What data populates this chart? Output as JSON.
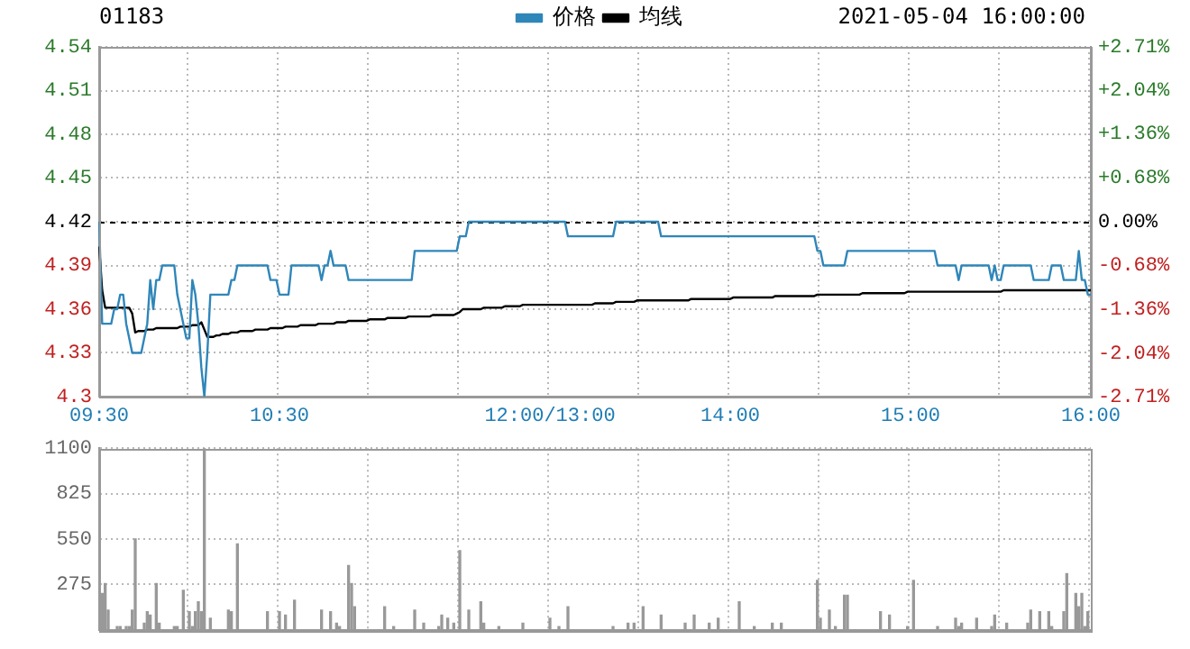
{
  "chart_data": [
    {
      "type": "line",
      "title": "01183",
      "annotations": [
        "2021-05-04 16:00:00"
      ],
      "legend": "top",
      "grid": true,
      "categories": [
        "09:30",
        null,
        null,
        null,
        null,
        null,
        null,
        null,
        null,
        null,
        null,
        null,
        null,
        null,
        null,
        null,
        null,
        null,
        null,
        null,
        null,
        null,
        null,
        null,
        null,
        null,
        null,
        null,
        null,
        null,
        null,
        null,
        null,
        null,
        null,
        null,
        null,
        null,
        null,
        null,
        null,
        null,
        null,
        null,
        null,
        null,
        null,
        null,
        null,
        null,
        null,
        null,
        null,
        null,
        null,
        null,
        null,
        null,
        null,
        null,
        "10:30",
        null,
        null,
        null,
        null,
        null,
        null,
        null,
        null,
        null,
        null,
        null,
        null,
        null,
        null,
        null,
        null,
        null,
        null,
        null,
        null,
        null,
        null,
        null,
        null,
        null,
        null,
        null,
        null,
        null,
        null,
        null,
        null,
        null,
        null,
        null,
        null,
        null,
        null,
        null,
        null,
        null,
        null,
        null,
        null,
        null,
        null,
        null,
        null,
        null,
        null,
        null,
        null,
        null,
        null,
        null,
        null,
        null,
        null,
        null,
        null,
        null,
        null,
        null,
        null,
        null,
        null,
        null,
        null,
        null,
        null,
        null,
        null,
        null,
        null,
        null,
        null,
        null,
        null,
        null,
        null,
        null,
        null,
        null,
        null,
        null,
        null,
        null,
        null,
        null,
        "12:00/13:00",
        null,
        null,
        null,
        null,
        null,
        null,
        null,
        null,
        null,
        null,
        null,
        null,
        null,
        null,
        null,
        null,
        null,
        null,
        null,
        null,
        null,
        null,
        null,
        null,
        null,
        null,
        null,
        null,
        null,
        null,
        null,
        null,
        null,
        null,
        null,
        null,
        null,
        null,
        null,
        null,
        null,
        null,
        null,
        null,
        null,
        null,
        null,
        null,
        null,
        null,
        null,
        null,
        null,
        null,
        null,
        null,
        null,
        null,
        null,
        "14:00",
        null,
        null,
        null,
        null,
        null,
        null,
        null,
        null,
        null,
        null,
        null,
        null,
        null,
        null,
        null,
        null,
        null,
        null,
        null,
        null,
        null,
        null,
        null,
        null,
        null,
        null,
        null,
        null,
        null,
        null,
        null,
        null,
        null,
        null,
        null,
        null,
        null,
        null,
        null,
        null,
        null,
        null,
        null,
        null,
        null,
        null,
        null,
        null,
        null,
        null,
        null,
        null,
        null,
        null,
        null,
        null,
        null,
        null,
        null,
        "15:00",
        null,
        null,
        null,
        null,
        null,
        null,
        null,
        null,
        null,
        null,
        null,
        null,
        null,
        null,
        null,
        null,
        null,
        null,
        null,
        null,
        null,
        null,
        null,
        null,
        null,
        null,
        null,
        null,
        null,
        null,
        null,
        null,
        null,
        null,
        null,
        null,
        null,
        null,
        null,
        null,
        null,
        null,
        null,
        null,
        null,
        null,
        null,
        null,
        null,
        null,
        null,
        null,
        null,
        null,
        null,
        null,
        null,
        null,
        null,
        "16:00"
      ],
      "ylim": [
        4.3,
        4.54
      ],
      "yticks": [
        4.3,
        4.33,
        4.36,
        4.39,
        4.42,
        4.45,
        4.48,
        4.51,
        4.54
      ],
      "y2lim": [
        -2.71,
        2.71
      ],
      "y2ticks": [
        {
          "value": -2.71,
          "label": "-2.71%"
        },
        {
          "value": -2.04,
          "label": "-2.04%"
        },
        {
          "value": -1.36,
          "label": "-1.36%"
        },
        {
          "value": -0.68,
          "label": "-0.68%"
        },
        {
          "value": 0,
          "label": "0.00%"
        },
        {
          "value": 0.68,
          "label": "+0.68%"
        },
        {
          "value": 1.36,
          "label": "+1.36%"
        },
        {
          "value": 2.04,
          "label": "+2.04%"
        },
        {
          "value": 2.71,
          "label": "+2.71%"
        }
      ],
      "ref_lines": [
        {
          "axis": "y",
          "value": 4.42,
          "color": "#000000",
          "line_style": "dashed"
        }
      ],
      "series": [
        {
          "name": "价格",
          "color": "#2f86b9",
          "values": [
            4.42,
            4.35,
            4.35,
            4.35,
            4.35,
            4.36,
            4.36,
            4.37,
            4.37,
            4.35,
            4.34,
            4.33,
            4.33,
            4.33,
            4.33,
            4.34,
            4.35,
            4.38,
            4.36,
            4.38,
            4.38,
            4.39,
            4.39,
            4.39,
            4.39,
            4.39,
            4.37,
            4.36,
            4.35,
            4.34,
            4.34,
            4.38,
            4.37,
            4.35,
            4.32,
            4.3,
            4.33,
            4.37,
            4.37,
            4.37,
            4.37,
            4.37,
            4.37,
            4.37,
            4.38,
            4.38,
            4.39,
            4.39,
            4.39,
            4.39,
            4.39,
            4.39,
            4.39,
            4.39,
            4.39,
            4.39,
            4.39,
            4.38,
            4.38,
            4.38,
            4.37,
            4.37,
            4.37,
            4.37,
            4.39,
            4.39,
            4.39,
            4.39,
            4.39,
            4.39,
            4.39,
            4.39,
            4.39,
            4.39,
            4.38,
            4.39,
            4.39,
            4.4,
            4.39,
            4.39,
            4.39,
            4.39,
            4.39,
            4.38,
            4.38,
            4.38,
            4.38,
            4.38,
            4.38,
            4.38,
            4.38,
            4.38,
            4.38,
            4.38,
            4.38,
            4.38,
            4.38,
            4.38,
            4.38,
            4.38,
            4.38,
            4.38,
            4.38,
            4.38,
            4.38,
            4.4,
            4.4,
            4.4,
            4.4,
            4.4,
            4.4,
            4.4,
            4.4,
            4.4,
            4.4,
            4.4,
            4.4,
            4.4,
            4.4,
            4.4,
            4.41,
            4.41,
            4.41,
            4.42,
            4.42,
            4.42,
            4.42,
            4.42,
            4.42,
            4.42,
            4.42,
            4.42,
            4.42,
            4.42,
            4.42,
            4.42,
            4.42,
            4.42,
            4.42,
            4.42,
            4.42,
            4.42,
            4.42,
            4.42,
            4.42,
            4.42,
            4.42,
            4.42,
            4.42,
            4.42,
            4.42,
            4.42,
            4.42,
            4.42,
            4.42,
            4.42,
            4.41,
            4.41,
            4.41,
            4.41,
            4.41,
            4.41,
            4.41,
            4.41,
            4.41,
            4.41,
            4.41,
            4.41,
            4.41,
            4.41,
            4.41,
            4.41,
            4.42,
            4.42,
            4.42,
            4.42,
            4.42,
            4.42,
            4.42,
            4.42,
            4.42,
            4.42,
            4.42,
            4.42,
            4.42,
            4.42,
            4.42,
            4.41,
            4.41,
            4.41,
            4.41,
            4.41,
            4.41,
            4.41,
            4.41,
            4.41,
            4.41,
            4.41,
            4.41,
            4.41,
            4.41,
            4.41,
            4.41,
            4.41,
            4.41,
            4.41,
            4.41,
            4.41,
            4.41,
            4.41,
            4.41,
            4.41,
            4.41,
            4.41,
            4.41,
            4.41,
            4.41,
            4.41,
            4.41,
            4.41,
            4.41,
            4.41,
            4.41,
            4.41,
            4.41,
            4.41,
            4.41,
            4.41,
            4.41,
            4.41,
            4.41,
            4.41,
            4.41,
            4.41,
            4.41,
            4.41,
            4.41,
            4.41,
            4.41,
            4.4,
            4.4,
            4.39,
            4.39,
            4.39,
            4.39,
            4.39,
            4.39,
            4.39,
            4.39,
            4.4,
            4.4,
            4.4,
            4.4,
            4.4,
            4.4,
            4.4,
            4.4,
            4.4,
            4.4,
            4.4,
            4.4,
            4.4,
            4.4,
            4.4,
            4.4,
            4.4,
            4.4,
            4.4,
            4.4,
            4.4,
            4.4,
            4.4,
            4.4,
            4.4,
            4.4,
            4.4,
            4.4,
            4.4,
            4.4,
            4.39,
            4.39,
            4.39,
            4.39,
            4.39,
            4.39,
            4.39,
            4.38,
            4.39,
            4.39,
            4.39,
            4.39,
            4.39,
            4.39,
            4.39,
            4.39,
            4.39,
            4.39,
            4.38,
            4.39,
            4.38,
            4.38,
            4.39,
            4.39,
            4.39,
            4.39,
            4.39,
            4.39,
            4.39,
            4.39,
            4.39,
            4.39,
            4.38,
            4.38,
            4.38,
            4.38,
            4.38,
            4.38,
            4.39,
            4.39,
            4.39,
            4.39,
            4.38,
            4.38,
            4.38,
            4.38,
            4.38,
            4.4,
            4.38,
            4.38,
            4.37,
            4.37
          ]
        },
        {
          "name": "均线",
          "color": "#000000",
          "values": [
            4.403,
            4.373,
            4.361,
            4.361,
            4.361,
            4.361,
            4.361,
            4.361,
            4.361,
            4.361,
            4.361,
            4.357,
            4.344,
            4.345,
            4.345,
            4.345,
            4.346,
            4.346,
            4.346,
            4.347,
            4.347,
            4.347,
            4.347,
            4.347,
            4.347,
            4.347,
            4.347,
            4.348,
            4.348,
            4.348,
            4.348,
            4.349,
            4.349,
            4.349,
            4.351,
            4.346,
            4.341,
            4.341,
            4.341,
            4.342,
            4.342,
            4.343,
            4.343,
            4.343,
            4.344,
            4.344,
            4.344,
            4.345,
            4.345,
            4.345,
            4.345,
            4.345,
            4.346,
            4.346,
            4.346,
            4.346,
            4.346,
            4.347,
            4.347,
            4.347,
            4.347,
            4.347,
            4.348,
            4.348,
            4.348,
            4.348,
            4.348,
            4.349,
            4.349,
            4.349,
            4.349,
            4.349,
            4.349,
            4.35,
            4.35,
            4.35,
            4.35,
            4.35,
            4.35,
            4.351,
            4.351,
            4.351,
            4.351,
            4.352,
            4.352,
            4.352,
            4.352,
            4.352,
            4.352,
            4.352,
            4.353,
            4.353,
            4.353,
            4.353,
            4.353,
            4.353,
            4.354,
            4.354,
            4.354,
            4.354,
            4.354,
            4.354,
            4.354,
            4.355,
            4.355,
            4.355,
            4.355,
            4.355,
            4.355,
            4.355,
            4.355,
            4.356,
            4.356,
            4.356,
            4.356,
            4.356,
            4.356,
            4.356,
            4.356,
            4.357,
            4.358,
            4.36,
            4.36,
            4.36,
            4.36,
            4.36,
            4.36,
            4.36,
            4.361,
            4.361,
            4.361,
            4.361,
            4.361,
            4.361,
            4.361,
            4.362,
            4.362,
            4.362,
            4.362,
            4.362,
            4.362,
            4.363,
            4.363,
            4.363,
            4.363,
            4.363,
            4.363,
            4.363,
            4.363,
            4.363,
            4.363,
            4.363,
            4.363,
            4.363,
            4.363,
            4.363,
            4.363,
            4.363,
            4.363,
            4.363,
            4.363,
            4.363,
            4.363,
            4.363,
            4.363,
            4.364,
            4.364,
            4.364,
            4.364,
            4.364,
            4.364,
            4.364,
            4.365,
            4.365,
            4.365,
            4.365,
            4.365,
            4.365,
            4.365,
            4.366,
            4.366,
            4.366,
            4.366,
            4.366,
            4.366,
            4.366,
            4.366,
            4.366,
            4.366,
            4.366,
            4.366,
            4.366,
            4.366,
            4.366,
            4.366,
            4.366,
            4.366,
            4.367,
            4.367,
            4.367,
            4.367,
            4.367,
            4.367,
            4.367,
            4.367,
            4.367,
            4.367,
            4.367,
            4.367,
            4.367,
            4.367,
            4.368,
            4.368,
            4.368,
            4.368,
            4.368,
            4.368,
            4.368,
            4.368,
            4.368,
            4.368,
            4.368,
            4.368,
            4.368,
            4.368,
            4.369,
            4.369,
            4.369,
            4.369,
            4.369,
            4.369,
            4.369,
            4.369,
            4.369,
            4.369,
            4.369,
            4.369,
            4.369,
            4.369,
            4.37,
            4.37,
            4.37,
            4.37,
            4.37,
            4.37,
            4.37,
            4.37,
            4.37,
            4.37,
            4.37,
            4.37,
            4.37,
            4.37,
            4.37,
            4.371,
            4.371,
            4.371,
            4.371,
            4.371,
            4.371,
            4.371,
            4.371,
            4.371,
            4.371,
            4.371,
            4.371,
            4.371,
            4.371,
            4.371,
            4.372,
            4.372,
            4.372,
            4.372,
            4.372,
            4.372,
            4.372,
            4.372,
            4.372,
            4.372,
            4.372,
            4.372,
            4.372,
            4.372,
            4.372,
            4.372,
            4.372,
            4.372,
            4.372,
            4.372,
            4.372,
            4.372,
            4.372,
            4.372,
            4.372,
            4.372,
            4.372,
            4.372,
            4.372,
            4.372,
            4.372,
            4.372,
            4.373,
            4.373,
            4.373,
            4.373,
            4.373,
            4.373,
            4.373,
            4.373,
            4.373,
            4.373,
            4.373,
            4.373,
            4.373,
            4.373,
            4.373,
            4.373,
            4.373,
            4.373,
            4.373,
            4.373,
            4.373,
            4.373,
            4.373,
            4.373,
            4.373,
            4.373,
            4.373,
            4.373,
            4.373,
            4.373
          ]
        }
      ]
    },
    {
      "type": "bar",
      "grid": true,
      "tick_labels": "y",
      "color": "#999999",
      "categories": [
        null,
        null,
        null,
        null,
        null,
        null,
        null,
        null,
        null,
        null,
        null,
        null,
        null,
        null,
        null,
        null,
        null,
        null,
        null,
        null,
        null,
        null,
        null,
        null,
        null,
        null,
        null,
        null,
        null,
        null,
        null,
        null,
        null,
        null,
        null,
        null,
        null,
        null,
        null,
        null,
        null,
        null,
        null,
        null,
        null,
        null,
        null,
        null,
        null,
        null,
        null,
        null,
        null,
        null,
        null,
        null,
        null,
        null,
        null,
        null,
        null,
        null,
        null,
        null,
        null,
        null,
        null,
        null,
        null,
        null,
        null,
        null,
        null,
        null,
        null,
        null,
        null,
        null,
        null,
        null,
        null,
        null,
        null,
        null,
        null,
        null,
        null,
        null,
        null,
        null,
        null,
        null,
        null,
        null,
        null,
        null,
        null,
        null,
        null,
        null,
        null,
        null,
        null,
        null,
        null,
        null,
        null,
        null,
        null,
        null,
        null,
        null,
        null,
        null,
        null,
        null,
        null,
        null,
        null,
        null,
        null,
        null,
        null,
        null,
        null,
        null,
        null,
        null,
        null,
        null,
        null,
        null,
        null,
        null,
        null,
        null,
        null,
        null,
        null,
        null,
        null,
        null,
        null,
        null,
        null,
        null,
        null,
        null,
        null,
        null,
        null,
        null,
        null,
        null,
        null,
        null,
        null,
        null,
        null,
        null,
        null,
        null,
        null,
        null,
        null,
        null,
        null,
        null,
        null,
        null,
        null,
        null,
        null,
        null,
        null,
        null,
        null,
        null,
        null,
        null,
        null,
        null,
        null,
        null,
        null,
        null,
        null,
        null,
        null,
        null,
        null,
        null,
        null,
        null,
        null,
        null,
        null,
        null,
        null,
        null,
        null,
        null,
        null,
        null,
        null,
        null,
        null,
        null,
        null,
        null,
        null,
        null,
        null,
        null,
        null,
        null,
        null,
        null,
        null,
        null,
        null,
        null,
        null,
        null,
        null,
        null,
        null,
        null,
        null,
        null,
        null,
        null,
        null,
        null,
        null,
        null,
        null,
        null,
        null,
        null,
        null,
        null,
        null,
        null,
        null,
        null,
        null,
        null,
        null,
        null,
        null,
        null,
        null,
        null,
        null,
        null,
        null,
        null,
        null,
        null,
        null,
        null,
        null,
        null,
        null,
        null,
        null,
        null,
        null,
        null,
        null,
        null,
        null,
        null,
        null,
        null,
        null,
        null,
        null,
        null,
        null,
        null,
        null,
        null,
        null,
        null,
        null,
        null,
        null,
        null,
        null,
        null,
        null,
        null,
        null,
        null,
        null,
        null,
        null,
        null,
        null,
        null,
        null,
        null,
        null,
        null,
        null,
        null,
        null,
        null,
        null,
        null,
        null,
        null,
        null,
        null,
        null,
        null,
        null,
        null,
        null,
        null,
        null,
        null,
        null,
        null,
        null,
        null,
        null,
        null,
        null
      ],
      "ylim": [
        0,
        1100
      ],
      "yticks": [
        275,
        550,
        825,
        1100
      ],
      "values": [
        0,
        220,
        280,
        120,
        0,
        0,
        20,
        20,
        0,
        20,
        20,
        120,
        550,
        0,
        0,
        40,
        110,
        90,
        0,
        280,
        40,
        0,
        0,
        0,
        0,
        20,
        20,
        0,
        240,
        0,
        110,
        20,
        110,
        170,
        110,
        1100,
        0,
        70,
        0,
        0,
        0,
        0,
        0,
        120,
        110,
        0,
        520,
        0,
        0,
        0,
        0,
        0,
        0,
        0,
        0,
        0,
        110,
        0,
        0,
        0,
        110,
        0,
        90,
        0,
        0,
        180,
        0,
        0,
        0,
        0,
        0,
        0,
        0,
        0,
        120,
        0,
        0,
        110,
        0,
        40,
        20,
        0,
        0,
        390,
        280,
        140,
        0,
        0,
        0,
        0,
        0,
        0,
        0,
        0,
        0,
        140,
        0,
        0,
        20,
        0,
        0,
        0,
        0,
        0,
        0,
        120,
        0,
        0,
        40,
        0,
        0,
        0,
        0,
        20,
        90,
        0,
        70,
        0,
        40,
        0,
        480,
        0,
        0,
        120,
        0,
        0,
        0,
        170,
        40,
        0,
        0,
        0,
        0,
        20,
        0,
        0,
        0,
        0,
        0,
        0,
        0,
        40,
        0,
        0,
        0,
        0,
        0,
        0,
        0,
        0,
        70,
        0,
        0,
        20,
        0,
        0,
        140,
        0,
        0,
        0,
        0,
        0,
        0,
        0,
        0,
        0,
        0,
        0,
        0,
        0,
        0,
        20,
        0,
        0,
        0,
        0,
        40,
        0,
        40,
        0,
        0,
        140,
        0,
        0,
        0,
        0,
        0,
        90,
        0,
        0,
        0,
        0,
        0,
        0,
        0,
        40,
        0,
        0,
        90,
        0,
        0,
        0,
        0,
        40,
        0,
        0,
        70,
        0,
        0,
        0,
        0,
        0,
        0,
        170,
        0,
        0,
        0,
        0,
        20,
        0,
        0,
        0,
        0,
        0,
        40,
        0,
        0,
        40,
        0,
        0,
        0,
        0,
        0,
        0,
        0,
        0,
        0,
        0,
        0,
        300,
        70,
        0,
        0,
        120,
        0,
        20,
        0,
        0,
        210,
        210,
        0,
        0,
        0,
        0,
        0,
        0,
        0,
        0,
        0,
        0,
        110,
        0,
        0,
        90,
        0,
        0,
        0,
        0,
        0,
        20,
        0,
        300,
        0,
        0,
        0,
        0,
        0,
        0,
        0,
        20,
        0,
        0,
        0,
        0,
        0,
        70,
        20,
        40,
        0,
        0,
        0,
        0,
        70,
        0,
        0,
        0,
        0,
        20,
        90,
        0,
        0,
        0,
        40,
        0,
        0,
        0,
        0,
        0,
        0,
        40,
        120,
        0,
        0,
        110,
        0,
        0,
        110,
        20,
        0,
        0,
        0,
        110,
        340,
        0,
        0,
        220,
        140,
        220,
        20,
        110,
        0
      ]
    }
  ]
}
